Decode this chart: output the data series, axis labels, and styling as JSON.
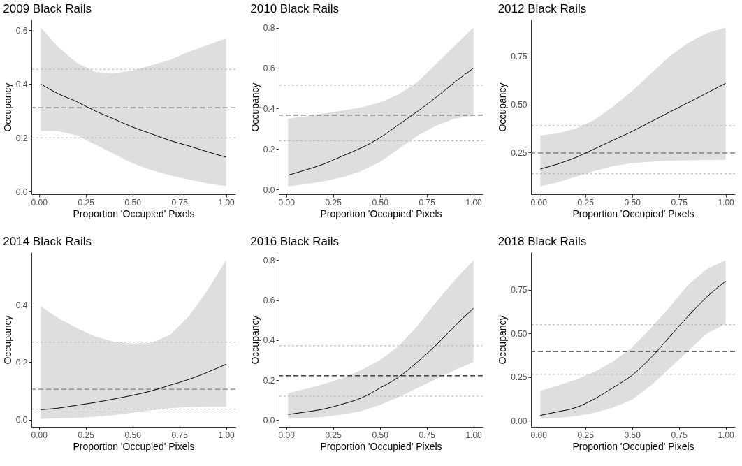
{
  "chart_data": [
    {
      "type": "line",
      "title": "2009 Black Rails",
      "xlabel": "Proportion 'Occupied' Pixels",
      "ylabel": "Occupancy",
      "x": [
        0.01,
        0.1,
        0.2,
        0.3,
        0.4,
        0.5,
        0.6,
        0.7,
        0.8,
        0.9,
        1.0
      ],
      "xlim": [
        -0.04,
        1.05
      ],
      "xticks": [
        {
          "value": 0,
          "label": "0.00"
        },
        {
          "value": 0.25,
          "label": "0.25"
        },
        {
          "value": 0.5,
          "label": "0.50"
        },
        {
          "value": 0.75,
          "label": "0.75"
        },
        {
          "value": 1,
          "label": "1.00"
        }
      ],
      "ylim": [
        -0.01,
        0.64
      ],
      "yticks": [
        {
          "value": 0,
          "label": "0.0"
        },
        {
          "value": 0.2,
          "label": "0.2"
        },
        {
          "value": 0.4,
          "label": "0.4"
        },
        {
          "value": 0.6,
          "label": "0.6"
        }
      ],
      "series": [
        {
          "color": "#000000",
          "values": [
            0.4,
            0.365,
            0.335,
            0.3,
            0.27,
            0.24,
            0.215,
            0.19,
            0.17,
            0.148,
            0.128
          ],
          "lower": [
            0.225,
            0.225,
            0.21,
            0.175,
            0.14,
            0.105,
            0.08,
            0.06,
            0.045,
            0.03,
            0.02
          ],
          "upper": [
            0.61,
            0.54,
            0.48,
            0.445,
            0.44,
            0.45,
            0.47,
            0.49,
            0.52,
            0.545,
            0.57
          ]
        }
      ],
      "ref_lines": [
        {
          "axis": "y",
          "value": 0.455,
          "color": "#b3b3b3",
          "line_style": "dotted"
        },
        {
          "axis": "y",
          "value": 0.312,
          "color": "#808080",
          "line_style": "dashed"
        },
        {
          "axis": "y",
          "value": 0.2,
          "color": "#b3b3b3",
          "line_style": "dotted"
        }
      ]
    },
    {
      "type": "line",
      "title": "2010 Black Rails",
      "xlabel": "Proportion 'Occupied' Pixels",
      "ylabel": "Occupancy",
      "x": [
        0.01,
        0.1,
        0.2,
        0.3,
        0.4,
        0.5,
        0.6,
        0.7,
        0.8,
        0.9,
        1.0
      ],
      "xlim": [
        -0.04,
        1.05
      ],
      "xticks": [
        {
          "value": 0,
          "label": "0.00"
        },
        {
          "value": 0.25,
          "label": "0.25"
        },
        {
          "value": 0.5,
          "label": "0.50"
        },
        {
          "value": 0.75,
          "label": "0.75"
        },
        {
          "value": 1,
          "label": "1.00"
        }
      ],
      "ylim": [
        -0.024,
        0.84
      ],
      "yticks": [
        {
          "value": 0,
          "label": "0.0"
        },
        {
          "value": 0.2,
          "label": "0.2"
        },
        {
          "value": 0.4,
          "label": "0.4"
        },
        {
          "value": 0.6,
          "label": "0.6"
        },
        {
          "value": 0.8,
          "label": "0.8"
        }
      ],
      "series": [
        {
          "color": "#000000",
          "values": [
            0.07,
            0.095,
            0.125,
            0.165,
            0.205,
            0.255,
            0.32,
            0.385,
            0.455,
            0.53,
            0.6
          ],
          "lower": [
            0.015,
            0.025,
            0.04,
            0.06,
            0.09,
            0.135,
            0.2,
            0.265,
            0.315,
            0.35,
            0.365
          ],
          "upper": [
            0.35,
            0.36,
            0.375,
            0.39,
            0.405,
            0.43,
            0.47,
            0.53,
            0.62,
            0.71,
            0.8
          ]
        }
      ],
      "ref_lines": [
        {
          "axis": "y",
          "value": 0.515,
          "color": "#b3b3b3",
          "line_style": "dotted"
        },
        {
          "axis": "y",
          "value": 0.367,
          "color": "#666666",
          "line_style": "dashed"
        },
        {
          "axis": "y",
          "value": 0.24,
          "color": "#b3b3b3",
          "line_style": "dotted"
        }
      ]
    },
    {
      "type": "line",
      "title": "2012 Black Rails",
      "xlabel": "Proportion 'Occupied' Pixels",
      "ylabel": "Occupancy",
      "x": [
        0.01,
        0.1,
        0.2,
        0.3,
        0.4,
        0.5,
        0.6,
        0.7,
        0.8,
        0.9,
        1.0
      ],
      "xlim": [
        -0.04,
        1.05
      ],
      "xticks": [
        {
          "value": 0,
          "label": "0.00"
        },
        {
          "value": 0.25,
          "label": "0.25"
        },
        {
          "value": 0.5,
          "label": "0.50"
        },
        {
          "value": 0.75,
          "label": "0.75"
        },
        {
          "value": 1,
          "label": "1.00"
        }
      ],
      "ylim": [
        0.034,
        0.941
      ],
      "yticks": [
        {
          "value": 0.25,
          "label": "0.25"
        },
        {
          "value": 0.5,
          "label": "0.50"
        },
        {
          "value": 0.75,
          "label": "0.75"
        }
      ],
      "series": [
        {
          "color": "#000000",
          "values": [
            0.165,
            0.19,
            0.225,
            0.27,
            0.315,
            0.36,
            0.41,
            0.46,
            0.51,
            0.56,
            0.61
          ],
          "lower": [
            0.075,
            0.095,
            0.125,
            0.155,
            0.18,
            0.195,
            0.203,
            0.208,
            0.21,
            0.212,
            0.213
          ],
          "upper": [
            0.34,
            0.35,
            0.375,
            0.42,
            0.49,
            0.57,
            0.66,
            0.75,
            0.82,
            0.87,
            0.9
          ]
        }
      ],
      "ref_lines": [
        {
          "axis": "y",
          "value": 0.39,
          "color": "#b3b3b3",
          "line_style": "dotted"
        },
        {
          "axis": "y",
          "value": 0.248,
          "color": "#808080",
          "line_style": "dashed"
        },
        {
          "axis": "y",
          "value": 0.14,
          "color": "#b3b3b3",
          "line_style": "dotted"
        }
      ]
    },
    {
      "type": "line",
      "title": "2014 Black Rails",
      "xlabel": "Proportion 'Occupied' Pixels",
      "ylabel": "Occupancy",
      "x": [
        0.01,
        0.1,
        0.2,
        0.3,
        0.4,
        0.5,
        0.6,
        0.7,
        0.8,
        0.9,
        1.0
      ],
      "xlim": [
        -0.04,
        1.05
      ],
      "xticks": [
        {
          "value": 0,
          "label": "0.00"
        },
        {
          "value": 0.25,
          "label": "0.25"
        },
        {
          "value": 0.5,
          "label": "0.50"
        },
        {
          "value": 0.75,
          "label": "0.75"
        },
        {
          "value": 1,
          "label": "1.00"
        }
      ],
      "ylim": [
        -0.025,
        0.583
      ],
      "yticks": [
        {
          "value": 0,
          "label": "0.0"
        },
        {
          "value": 0.2,
          "label": "0.2"
        },
        {
          "value": 0.4,
          "label": "0.4"
        }
      ],
      "series": [
        {
          "color": "#000000",
          "values": [
            0.035,
            0.04,
            0.05,
            0.06,
            0.072,
            0.085,
            0.1,
            0.12,
            0.14,
            0.165,
            0.193
          ],
          "lower": [
            0.003,
            0.004,
            0.006,
            0.01,
            0.016,
            0.024,
            0.033,
            0.04,
            0.044,
            0.045,
            0.045
          ],
          "upper": [
            0.395,
            0.355,
            0.32,
            0.29,
            0.272,
            0.265,
            0.268,
            0.295,
            0.36,
            0.45,
            0.555
          ]
        }
      ],
      "ref_lines": [
        {
          "axis": "y",
          "value": 0.27,
          "color": "#b3b3b3",
          "line_style": "dotted"
        },
        {
          "axis": "y",
          "value": 0.106,
          "color": "#808080",
          "line_style": "dashed"
        },
        {
          "axis": "y",
          "value": 0.037,
          "color": "#b3b3b3",
          "line_style": "dotted"
        }
      ]
    },
    {
      "type": "line",
      "title": "2016 Black Rails",
      "xlabel": "Proportion 'Occupied' Pixels",
      "ylabel": "Occupancy",
      "x": [
        0.01,
        0.1,
        0.2,
        0.3,
        0.4,
        0.5,
        0.6,
        0.7,
        0.8,
        0.9,
        1.0
      ],
      "xlim": [
        -0.04,
        1.05
      ],
      "xticks": [
        {
          "value": 0,
          "label": "0.00"
        },
        {
          "value": 0.25,
          "label": "0.25"
        },
        {
          "value": 0.5,
          "label": "0.50"
        },
        {
          "value": 0.75,
          "label": "0.75"
        },
        {
          "value": 1,
          "label": "1.00"
        }
      ],
      "ylim": [
        -0.034,
        0.84
      ],
      "yticks": [
        {
          "value": 0,
          "label": "0.0"
        },
        {
          "value": 0.2,
          "label": "0.2"
        },
        {
          "value": 0.4,
          "label": "0.4"
        },
        {
          "value": 0.6,
          "label": "0.6"
        },
        {
          "value": 0.8,
          "label": "0.8"
        }
      ],
      "series": [
        {
          "color": "#000000",
          "values": [
            0.028,
            0.04,
            0.055,
            0.08,
            0.11,
            0.16,
            0.215,
            0.29,
            0.375,
            0.47,
            0.56
          ],
          "lower": [
            0.006,
            0.01,
            0.016,
            0.028,
            0.045,
            0.075,
            0.115,
            0.16,
            0.205,
            0.25,
            0.29
          ],
          "upper": [
            0.135,
            0.155,
            0.18,
            0.21,
            0.25,
            0.3,
            0.37,
            0.47,
            0.59,
            0.7,
            0.8
          ]
        }
      ],
      "ref_lines": [
        {
          "axis": "y",
          "value": 0.372,
          "color": "#b3b3b3",
          "line_style": "dotted"
        },
        {
          "axis": "y",
          "value": 0.222,
          "color": "#404040",
          "line_style": "dashed"
        },
        {
          "axis": "y",
          "value": 0.12,
          "color": "#b3b3b3",
          "line_style": "dotted"
        }
      ]
    },
    {
      "type": "line",
      "title": "2018 Black Rails",
      "xlabel": "Proportion 'Occupied' Pixels",
      "ylabel": "Occupancy",
      "x": [
        0.01,
        0.1,
        0.2,
        0.3,
        0.4,
        0.5,
        0.6,
        0.7,
        0.8,
        0.9,
        1.0
      ],
      "xlim": [
        -0.04,
        1.05
      ],
      "xticks": [
        {
          "value": 0,
          "label": "0.00"
        },
        {
          "value": 0.25,
          "label": "0.25"
        },
        {
          "value": 0.5,
          "label": "0.50"
        },
        {
          "value": 0.75,
          "label": "0.75"
        },
        {
          "value": 1,
          "label": "1.00"
        }
      ],
      "ylim": [
        -0.036,
        0.966
      ],
      "yticks": [
        {
          "value": 0,
          "label": "0.00"
        },
        {
          "value": 0.25,
          "label": "0.25"
        },
        {
          "value": 0.5,
          "label": "0.50"
        },
        {
          "value": 0.75,
          "label": "0.75"
        }
      ],
      "series": [
        {
          "color": "#000000",
          "values": [
            0.03,
            0.05,
            0.075,
            0.125,
            0.19,
            0.26,
            0.36,
            0.48,
            0.6,
            0.71,
            0.8
          ],
          "lower": [
            0.01,
            0.015,
            0.025,
            0.045,
            0.075,
            0.12,
            0.2,
            0.3,
            0.4,
            0.5,
            0.555
          ],
          "upper": [
            0.17,
            0.2,
            0.235,
            0.28,
            0.34,
            0.42,
            0.53,
            0.65,
            0.78,
            0.87,
            0.92
          ]
        }
      ],
      "ref_lines": [
        {
          "axis": "y",
          "value": 0.55,
          "color": "#b3b3b3",
          "line_style": "dotted"
        },
        {
          "axis": "y",
          "value": 0.396,
          "color": "#404040",
          "line_style": "dashed"
        },
        {
          "axis": "y",
          "value": 0.265,
          "color": "#b3b3b3",
          "line_style": "dotted"
        }
      ]
    }
  ]
}
